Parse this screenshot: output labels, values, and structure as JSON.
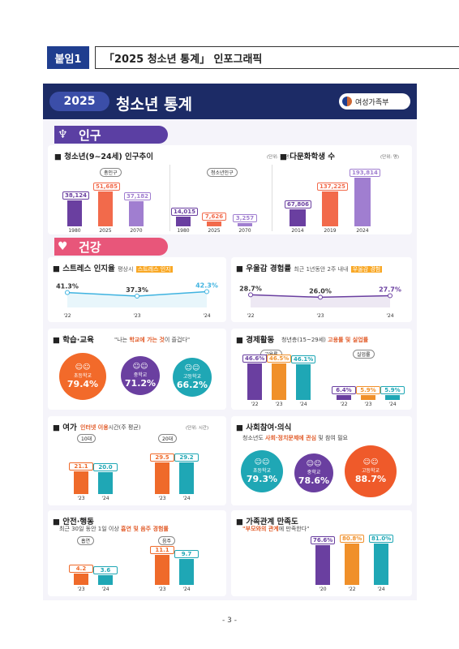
{
  "header": {
    "tag": "붙임1",
    "title": "「2025 청소년 통계」 인포그래픽"
  },
  "banner": {
    "year": "2025",
    "title": "청소년 통계",
    "ministry": "여성가족부"
  },
  "sections": {
    "population": "인구",
    "health": "건강"
  },
  "population": {
    "trend": {
      "title": "청소년(9~24세) 인구추이",
      "unit": "(단위: 천 명)",
      "groups": [
        {
          "label": "총인구",
          "bars": [
            {
              "year": "1980",
              "value": "38,124"
            },
            {
              "year": "2025",
              "value": "51,685"
            },
            {
              "year": "2070",
              "value": "37,182"
            }
          ]
        },
        {
          "label": "청소년인구",
          "bars": [
            {
              "year": "1980",
              "value": "14,015"
            },
            {
              "year": "2025",
              "value": "7,626"
            },
            {
              "year": "2070",
              "value": "3,257"
            }
          ]
        }
      ]
    },
    "multicultural": {
      "title": "다문화학생 수",
      "unit": "(단위: 명)",
      "bars": [
        {
          "year": "2014",
          "value": "67,806"
        },
        {
          "year": "2019",
          "value": "137,225"
        },
        {
          "year": "2024",
          "value": "193,814"
        }
      ]
    }
  },
  "health": {
    "stress": {
      "title": "스트레스 인지율",
      "sub": "평상시",
      "hl": "스트레스 인지",
      "points": [
        {
          "year": "'22",
          "value": "41.3%"
        },
        {
          "year": "'23",
          "value": "37.3%"
        },
        {
          "year": "'24",
          "value": "42.3%"
        }
      ]
    },
    "depression": {
      "title": "우울감 경험률",
      "sub": "최근 1년동안 2주 내내",
      "hl": "우울감 경험",
      "points": [
        {
          "year": "'22",
          "value": "28.7%"
        },
        {
          "year": "'23",
          "value": "26.0%"
        },
        {
          "year": "'24",
          "value": "27.7%"
        }
      ]
    }
  },
  "education": {
    "title": "학습·교육",
    "sub_pre": "\"나는",
    "sub_hl": "학교에 가는 것",
    "sub_post": "이 즐겁다\"",
    "items": [
      {
        "label": "초등학교",
        "value": "79.4%"
      },
      {
        "label": "중학교",
        "value": "71.2%"
      },
      {
        "label": "고등학교",
        "value": "66.2%"
      }
    ]
  },
  "economy": {
    "title": "경제활동",
    "sub": "청년층(15~29세)",
    "hl": "고용률 및 실업률",
    "groups": [
      {
        "label": "고용률",
        "bars": [
          {
            "year": "'22",
            "value": "46.6%"
          },
          {
            "year": "'23",
            "value": "46.5%"
          },
          {
            "year": "'24",
            "value": "46.1%"
          }
        ]
      },
      {
        "label": "실업률",
        "bars": [
          {
            "year": "'22",
            "value": "6.4%"
          },
          {
            "year": "'23",
            "value": "5.9%"
          },
          {
            "year": "'24",
            "value": "5.9%"
          }
        ]
      }
    ]
  },
  "leisure": {
    "title": "여가",
    "sub_hl": "인터넷 이용",
    "sub_post": "시간(주 평균)",
    "unit": "(단위: 시간)",
    "groups": [
      {
        "label": "10대",
        "bars": [
          {
            "year": "'23",
            "value": "21.1"
          },
          {
            "year": "'24",
            "value": "20.0"
          }
        ]
      },
      {
        "label": "20대",
        "bars": [
          {
            "year": "'23",
            "value": "29.5"
          },
          {
            "year": "'24",
            "value": "29.2"
          }
        ]
      }
    ]
  },
  "social": {
    "title": "사회참여·의식",
    "sub_pre": "청소년도",
    "sub_hl": "사회·정치문제에 관심",
    "sub_post": "및 참여 필요",
    "items": [
      {
        "label": "초등학교",
        "value": "79.3%"
      },
      {
        "label": "중학교",
        "value": "78.6%"
      },
      {
        "label": "고등학교",
        "value": "88.7%"
      }
    ]
  },
  "safety": {
    "title": "안전·행동",
    "sub_pre": "최근 30일 동안 1일 이상",
    "sub_hl": "흡연 및 음주 경험률",
    "groups": [
      {
        "label": "흡연",
        "bars": [
          {
            "year": "'23",
            "value": "4.2"
          },
          {
            "year": "'24",
            "value": "3.6"
          }
        ]
      },
      {
        "label": "음주",
        "bars": [
          {
            "year": "'23",
            "value": "11.1"
          },
          {
            "year": "'24",
            "value": "9.7"
          }
        ]
      }
    ]
  },
  "family": {
    "title": "가족관계 만족도",
    "sub_hl": "\"부모와의 관계",
    "sub_post": "에 만족한다\"",
    "bars": [
      {
        "year": "'20",
        "value": "76.6%"
      },
      {
        "year": "'22",
        "value": "80.8%"
      },
      {
        "year": "'24",
        "value": "81.0%"
      }
    ]
  },
  "footer": {
    "page": "- 3 -"
  }
}
